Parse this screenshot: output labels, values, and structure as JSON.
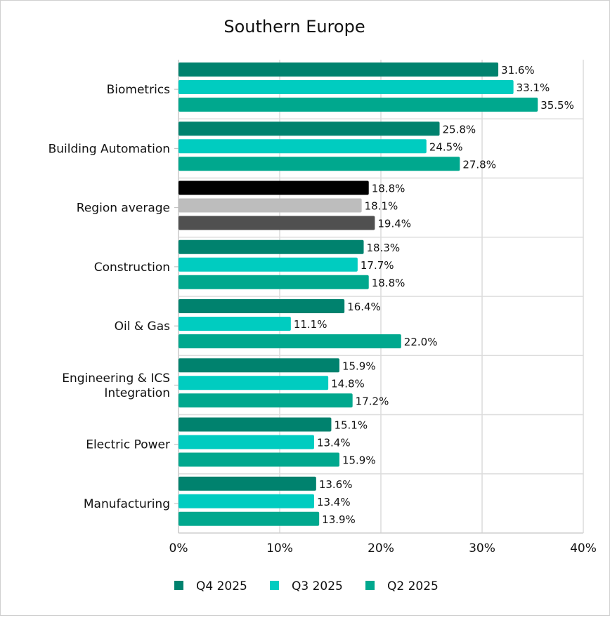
{
  "chart_data": {
    "type": "bar",
    "orientation": "horizontal",
    "title": "Southern Europe",
    "categories": [
      "Biometrics",
      "Building Automation",
      "Region average",
      "Construction",
      "Oil & Gas",
      "Engineering & ICS Integration",
      "Electric Power",
      "Manufacturing"
    ],
    "category_lines": [
      [
        "Biometrics"
      ],
      [
        "Building Automation"
      ],
      [
        "Region average"
      ],
      [
        "Construction"
      ],
      [
        "Oil & Gas"
      ],
      [
        "Engineering & ICS",
        "Integration"
      ],
      [
        "Electric Power"
      ],
      [
        "Manufacturing"
      ]
    ],
    "series": [
      {
        "name": "Q4 2025",
        "color": "#00826e",
        "values": [
          31.6,
          25.8,
          18.8,
          18.3,
          16.4,
          15.9,
          15.1,
          13.6
        ],
        "labels": [
          "31.6%",
          "25.8%",
          "18.8%",
          "18.3%",
          "16.4%",
          "15.9%",
          "15.1%",
          "13.6%"
        ]
      },
      {
        "name": "Q3 2025",
        "color": "#00ccc0",
        "values": [
          33.1,
          24.5,
          18.1,
          17.7,
          11.1,
          14.8,
          13.4,
          13.4
        ],
        "labels": [
          "33.1%",
          "24.5%",
          "18.1%",
          "17.7%",
          "11.1%",
          "14.8%",
          "13.4%",
          "13.4%"
        ]
      },
      {
        "name": "Q2 2025",
        "color": "#00a88e",
        "values": [
          35.5,
          27.8,
          19.4,
          18.8,
          22.0,
          17.2,
          15.9,
          13.9
        ],
        "labels": [
          "35.5%",
          "27.8%",
          "19.4%",
          "18.8%",
          "22.0%",
          "17.2%",
          "15.9%",
          "13.9%"
        ]
      }
    ],
    "highlight_category": "Region average",
    "highlight_colors": [
      "#000000",
      "#bdbdbd",
      "#505050"
    ],
    "xlim": [
      0,
      40
    ],
    "xticks": [
      0,
      10,
      20,
      30,
      40
    ],
    "xtick_labels": [
      "0%",
      "10%",
      "20%",
      "30%",
      "40%"
    ],
    "grid": true,
    "legend_position": "bottom"
  }
}
